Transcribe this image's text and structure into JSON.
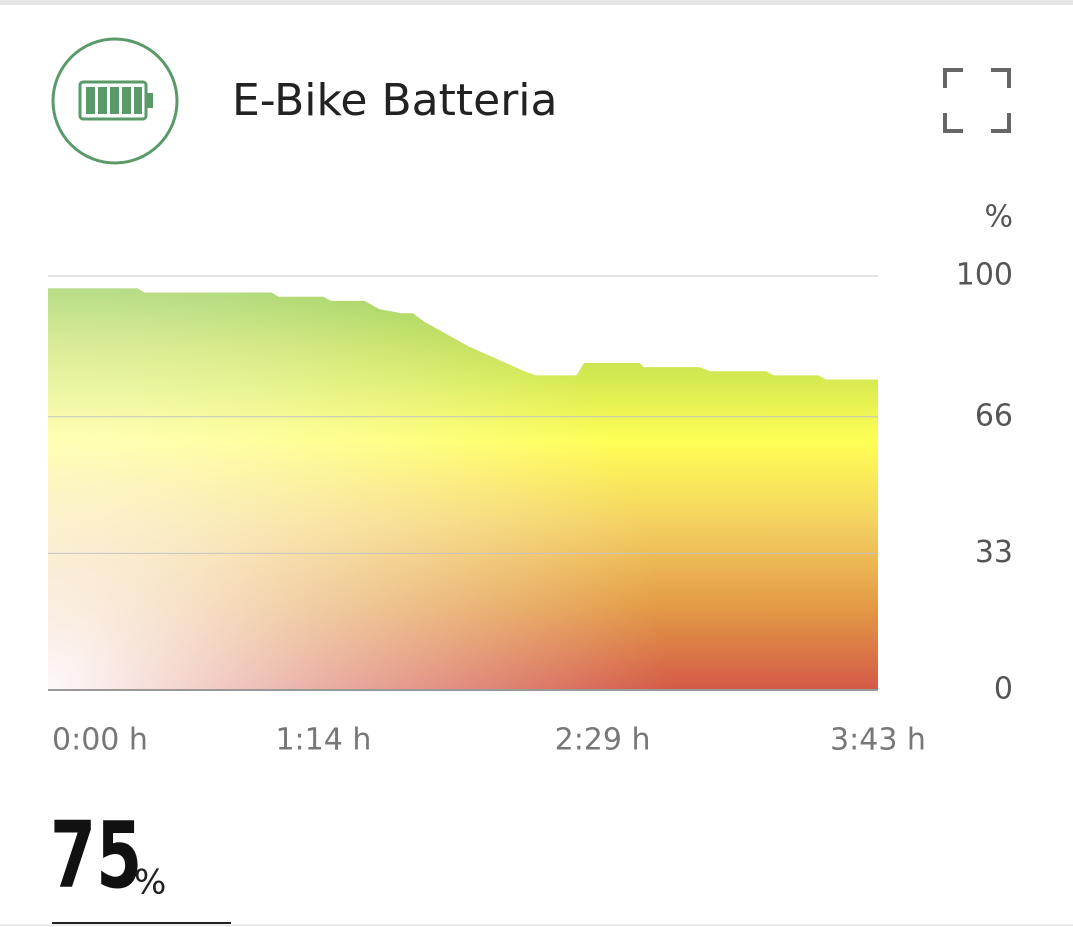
{
  "header": {
    "title": "E-Bike Batteria"
  },
  "chart_data": {
    "type": "area",
    "ylabel": "%",
    "x": [
      0,
      24,
      26,
      60,
      62,
      74,
      76,
      85,
      89,
      95,
      98,
      101,
      113,
      128,
      131,
      142,
      144,
      159,
      160,
      175,
      178,
      193,
      195,
      207,
      209,
      223
    ],
    "values": [
      97,
      97,
      96,
      96,
      95,
      95,
      94,
      94,
      92,
      91,
      91,
      89,
      83,
      77,
      76,
      76,
      79,
      79,
      78,
      78,
      77,
      77,
      76,
      76,
      75,
      75
    ],
    "xlim": [
      0,
      223
    ],
    "xticks": [
      {
        "value": 0,
        "label": "0:00 h"
      },
      {
        "value": 74,
        "label": "1:14 h"
      },
      {
        "value": 149,
        "label": "2:29 h"
      },
      {
        "value": 223,
        "label": "3:43 h"
      }
    ],
    "ylim": [
      0,
      100
    ],
    "yticks": [
      0,
      33,
      66,
      100
    ],
    "grid": true,
    "colors": [
      "#d45a48",
      "#e39a45",
      "#f4d060",
      "#ffff55",
      "#c9e350",
      "#8cc850"
    ]
  },
  "summary": {
    "value": 75,
    "unit": "%"
  }
}
